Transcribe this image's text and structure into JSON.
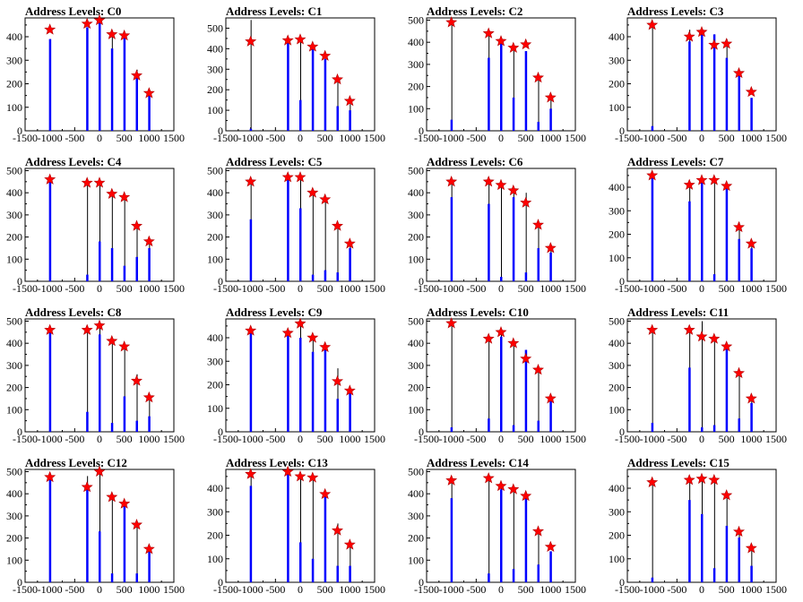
{
  "figure": {
    "background": "#ffffff"
  },
  "colors": {
    "bar": "#0000ff",
    "spike": "#000000",
    "marker": "#ff0000",
    "axis": "#000000"
  },
  "chart_data": [
    {
      "type": "bar",
      "title": "Address Levels: C0",
      "xlim": [
        -1500,
        1500
      ],
      "ylim": [
        0,
        480
      ],
      "xticks": [
        "-1500",
        "-1000",
        "-500",
        "0",
        "500",
        "1000",
        "1500"
      ],
      "yticks": [
        "0",
        "100",
        "200",
        "300",
        "400"
      ],
      "peaks": [
        {
          "x": -1000,
          "bar": 390,
          "spike": 390,
          "marker": 430
        },
        {
          "x": -250,
          "bar": 440,
          "spike": 440,
          "marker": 455
        },
        {
          "x": 0,
          "bar": 470,
          "spike": 480,
          "marker": 470
        },
        {
          "x": 250,
          "bar": 350,
          "spike": 420,
          "marker": 410
        },
        {
          "x": 500,
          "bar": 410,
          "spike": 410,
          "marker": 405
        },
        {
          "x": 750,
          "bar": 240,
          "spike": 260,
          "marker": 235
        },
        {
          "x": 1000,
          "bar": 150,
          "spike": 150,
          "marker": 160
        }
      ]
    },
    {
      "type": "bar",
      "title": "Address Levels: C1",
      "xlim": [
        -1500,
        1500
      ],
      "ylim": [
        0,
        550
      ],
      "xticks": [
        "-1500",
        "-1000",
        "-500",
        "0",
        "500",
        "1000",
        "1500"
      ],
      "yticks": [
        "0",
        "100",
        "200",
        "300",
        "400",
        "500"
      ],
      "peaks": [
        {
          "x": -1000,
          "bar": 10,
          "spike": 540,
          "marker": 435
        },
        {
          "x": -250,
          "bar": 440,
          "spike": 440,
          "marker": 440
        },
        {
          "x": 0,
          "bar": 150,
          "spike": 450,
          "marker": 445
        },
        {
          "x": 250,
          "bar": 400,
          "spike": 400,
          "marker": 410
        },
        {
          "x": 500,
          "bar": 350,
          "spike": 350,
          "marker": 365
        },
        {
          "x": 750,
          "bar": 120,
          "spike": 260,
          "marker": 250
        },
        {
          "x": 1000,
          "bar": 100,
          "spike": 130,
          "marker": 145
        }
      ]
    },
    {
      "type": "bar",
      "title": "Address Levels: C2",
      "xlim": [
        -1500,
        1500
      ],
      "ylim": [
        0,
        510
      ],
      "xticks": [
        "-1500",
        "-1000",
        "-500",
        "0",
        "500",
        "1000",
        "1500"
      ],
      "yticks": [
        "0",
        "100",
        "200",
        "300",
        "400",
        "500"
      ],
      "peaks": [
        {
          "x": -1000,
          "bar": 50,
          "spike": 500,
          "marker": 490
        },
        {
          "x": -250,
          "bar": 330,
          "spike": 450,
          "marker": 440
        },
        {
          "x": 0,
          "bar": 400,
          "spike": 400,
          "marker": 405
        },
        {
          "x": 250,
          "bar": 150,
          "spike": 390,
          "marker": 375
        },
        {
          "x": 500,
          "bar": 360,
          "spike": 360,
          "marker": 390
        },
        {
          "x": 750,
          "bar": 40,
          "spike": 250,
          "marker": 240
        },
        {
          "x": 1000,
          "bar": 100,
          "spike": 150,
          "marker": 150
        }
      ]
    },
    {
      "type": "bar",
      "title": "Address Levels: C3",
      "xlim": [
        -1500,
        1500
      ],
      "ylim": [
        0,
        480
      ],
      "xticks": [
        "-1500",
        "-1000",
        "-500",
        "0",
        "500",
        "1000",
        "1500"
      ],
      "yticks": [
        "0",
        "100",
        "200",
        "300",
        "400"
      ],
      "peaks": [
        {
          "x": -1000,
          "bar": 20,
          "spike": 450,
          "marker": 450
        },
        {
          "x": -250,
          "bar": 380,
          "spike": 430,
          "marker": 400
        },
        {
          "x": 0,
          "bar": 410,
          "spike": 420,
          "marker": 420
        },
        {
          "x": 250,
          "bar": 410,
          "spike": 410,
          "marker": 365
        },
        {
          "x": 500,
          "bar": 310,
          "spike": 390,
          "marker": 370
        },
        {
          "x": 750,
          "bar": 250,
          "spike": 250,
          "marker": 245
        },
        {
          "x": 1000,
          "bar": 140,
          "spike": 140,
          "marker": 165
        }
      ]
    },
    {
      "type": "bar",
      "title": "Address Levels: C4",
      "xlim": [
        -1500,
        1500
      ],
      "ylim": [
        0,
        510
      ],
      "xticks": [
        "-1500",
        "-1000",
        "-500",
        "0",
        "500",
        "1000",
        "1500"
      ],
      "yticks": [
        "0",
        "100",
        "200",
        "300",
        "400",
        "500"
      ],
      "peaks": [
        {
          "x": -1000,
          "bar": 460,
          "spike": 460,
          "marker": 460
        },
        {
          "x": -250,
          "bar": 30,
          "spike": 440,
          "marker": 445
        },
        {
          "x": 0,
          "bar": 180,
          "spike": 450,
          "marker": 445
        },
        {
          "x": 250,
          "bar": 150,
          "spike": 400,
          "marker": 395
        },
        {
          "x": 500,
          "bar": 70,
          "spike": 390,
          "marker": 380
        },
        {
          "x": 750,
          "bar": 110,
          "spike": 250,
          "marker": 250
        },
        {
          "x": 1000,
          "bar": 150,
          "spike": 180,
          "marker": 180
        }
      ]
    },
    {
      "type": "bar",
      "title": "Address Levels: C5",
      "xlim": [
        -1500,
        1500
      ],
      "ylim": [
        0,
        510
      ],
      "xticks": [
        "-1500",
        "-1000",
        "-500",
        "0",
        "500",
        "1000",
        "1500"
      ],
      "yticks": [
        "0",
        "100",
        "200",
        "300",
        "400",
        "500"
      ],
      "peaks": [
        {
          "x": -1000,
          "bar": 280,
          "spike": 450,
          "marker": 450
        },
        {
          "x": -250,
          "bar": 470,
          "spike": 470,
          "marker": 470
        },
        {
          "x": 0,
          "bar": 330,
          "spike": 470,
          "marker": 470
        },
        {
          "x": 250,
          "bar": 30,
          "spike": 400,
          "marker": 400
        },
        {
          "x": 500,
          "bar": 50,
          "spike": 380,
          "marker": 370
        },
        {
          "x": 750,
          "bar": 40,
          "spike": 250,
          "marker": 250
        },
        {
          "x": 1000,
          "bar": 150,
          "spike": 170,
          "marker": 170
        }
      ]
    },
    {
      "type": "bar",
      "title": "Address Levels: C6",
      "xlim": [
        -1500,
        1500
      ],
      "ylim": [
        0,
        510
      ],
      "xticks": [
        "-1500",
        "-1000",
        "-500",
        "0",
        "500",
        "1000",
        "1500"
      ],
      "yticks": [
        "0",
        "100",
        "200",
        "300",
        "400",
        "500"
      ],
      "peaks": [
        {
          "x": -1000,
          "bar": 380,
          "spike": 450,
          "marker": 450
        },
        {
          "x": -250,
          "bar": 350,
          "spike": 450,
          "marker": 450
        },
        {
          "x": 0,
          "bar": 20,
          "spike": 430,
          "marker": 435
        },
        {
          "x": 250,
          "bar": 380,
          "spike": 410,
          "marker": 410
        },
        {
          "x": 500,
          "bar": 40,
          "spike": 400,
          "marker": 355
        },
        {
          "x": 750,
          "bar": 150,
          "spike": 250,
          "marker": 255
        },
        {
          "x": 1000,
          "bar": 130,
          "spike": 150,
          "marker": 150
        }
      ]
    },
    {
      "type": "bar",
      "title": "Address Levels: C7",
      "xlim": [
        -1500,
        1500
      ],
      "ylim": [
        0,
        480
      ],
      "xticks": [
        "-1500",
        "-1000",
        "-500",
        "0",
        "500",
        "1000",
        "1500"
      ],
      "yticks": [
        "0",
        "100",
        "200",
        "300",
        "400"
      ],
      "peaks": [
        {
          "x": -1000,
          "bar": 450,
          "spike": 450,
          "marker": 450
        },
        {
          "x": -250,
          "bar": 340,
          "spike": 420,
          "marker": 410
        },
        {
          "x": 0,
          "bar": 420,
          "spike": 440,
          "marker": 430
        },
        {
          "x": 250,
          "bar": 30,
          "spike": 430,
          "marker": 430
        },
        {
          "x": 500,
          "bar": 400,
          "spike": 400,
          "marker": 405
        },
        {
          "x": 750,
          "bar": 180,
          "spike": 250,
          "marker": 230
        },
        {
          "x": 1000,
          "bar": 140,
          "spike": 150,
          "marker": 160
        }
      ]
    },
    {
      "type": "bar",
      "title": "Address Levels: C8",
      "xlim": [
        -1500,
        1500
      ],
      "ylim": [
        0,
        510
      ],
      "xticks": [
        "-1500",
        "-1000",
        "-500",
        "0",
        "500",
        "1000",
        "1500"
      ],
      "yticks": [
        "0",
        "100",
        "200",
        "300",
        "400",
        "500"
      ],
      "peaks": [
        {
          "x": -1000,
          "bar": 460,
          "spike": 460,
          "marker": 460
        },
        {
          "x": -250,
          "bar": 90,
          "spike": 460,
          "marker": 460
        },
        {
          "x": 0,
          "bar": 440,
          "spike": 480,
          "marker": 480
        },
        {
          "x": 250,
          "bar": 40,
          "spike": 410,
          "marker": 410
        },
        {
          "x": 500,
          "bar": 160,
          "spike": 390,
          "marker": 385
        },
        {
          "x": 750,
          "bar": 50,
          "spike": 260,
          "marker": 230
        },
        {
          "x": 1000,
          "bar": 70,
          "spike": 150,
          "marker": 155
        }
      ]
    },
    {
      "type": "bar",
      "title": "Address Levels: C9",
      "xlim": [
        -1500,
        1500
      ],
      "ylim": [
        0,
        480
      ],
      "xticks": [
        "-1500",
        "-1000",
        "-500",
        "0",
        "500",
        "1000",
        "1500"
      ],
      "yticks": [
        "0",
        "100",
        "200",
        "300",
        "400"
      ],
      "peaks": [
        {
          "x": -1000,
          "bar": 440,
          "spike": 440,
          "marker": 430
        },
        {
          "x": -250,
          "bar": 420,
          "spike": 420,
          "marker": 420
        },
        {
          "x": 0,
          "bar": 400,
          "spike": 460,
          "marker": 460
        },
        {
          "x": 250,
          "bar": 340,
          "spike": 400,
          "marker": 400
        },
        {
          "x": 500,
          "bar": 360,
          "spike": 360,
          "marker": 360
        },
        {
          "x": 750,
          "bar": 140,
          "spike": 270,
          "marker": 215
        },
        {
          "x": 1000,
          "bar": 170,
          "spike": 170,
          "marker": 175
        }
      ]
    },
    {
      "type": "bar",
      "title": "Address Levels: C10",
      "xlim": [
        -1500,
        1500
      ],
      "ylim": [
        0,
        510
      ],
      "xticks": [
        "-1500",
        "-1000",
        "-500",
        "0",
        "500",
        "1000",
        "1500"
      ],
      "yticks": [
        "0",
        "100",
        "200",
        "300",
        "400",
        "500"
      ],
      "peaks": [
        {
          "x": -1000,
          "bar": 20,
          "spike": 490,
          "marker": 490
        },
        {
          "x": -250,
          "bar": 60,
          "spike": 420,
          "marker": 420
        },
        {
          "x": 0,
          "bar": 430,
          "spike": 450,
          "marker": 450
        },
        {
          "x": 250,
          "bar": 30,
          "spike": 400,
          "marker": 400
        },
        {
          "x": 500,
          "bar": 370,
          "spike": 370,
          "marker": 330
        },
        {
          "x": 750,
          "bar": 50,
          "spike": 280,
          "marker": 280
        },
        {
          "x": 1000,
          "bar": 140,
          "spike": 150,
          "marker": 150
        }
      ]
    },
    {
      "type": "bar",
      "title": "Address Levels: C11",
      "xlim": [
        -1500,
        1500
      ],
      "ylim": [
        0,
        510
      ],
      "xticks": [
        "-1500",
        "-1000",
        "-500",
        "0",
        "500",
        "1000",
        "1500"
      ],
      "yticks": [
        "0",
        "100",
        "200",
        "300",
        "400",
        "500"
      ],
      "peaks": [
        {
          "x": -1000,
          "bar": 40,
          "spike": 460,
          "marker": 460
        },
        {
          "x": -250,
          "bar": 290,
          "spike": 460,
          "marker": 460
        },
        {
          "x": 0,
          "bar": 20,
          "spike": 500,
          "marker": 430
        },
        {
          "x": 250,
          "bar": 30,
          "spike": 420,
          "marker": 420
        },
        {
          "x": 500,
          "bar": 390,
          "spike": 390,
          "marker": 385
        },
        {
          "x": 750,
          "bar": 60,
          "spike": 270,
          "marker": 265
        },
        {
          "x": 1000,
          "bar": 130,
          "spike": 150,
          "marker": 150
        }
      ]
    },
    {
      "type": "bar",
      "title": "Address Levels: C12",
      "xlim": [
        -1500,
        1500
      ],
      "ylim": [
        0,
        510
      ],
      "xticks": [
        "-1500",
        "-1000",
        "-500",
        "0",
        "500",
        "1000",
        "1500"
      ],
      "yticks": [
        "0",
        "100",
        "200",
        "300",
        "400",
        "500"
      ],
      "peaks": [
        {
          "x": -1000,
          "bar": 470,
          "spike": 470,
          "marker": 475
        },
        {
          "x": -250,
          "bar": 420,
          "spike": 480,
          "marker": 430
        },
        {
          "x": 0,
          "bar": 230,
          "spike": 500,
          "marker": 500
        },
        {
          "x": 250,
          "bar": 40,
          "spike": 400,
          "marker": 385
        },
        {
          "x": 500,
          "bar": 350,
          "spike": 350,
          "marker": 355
        },
        {
          "x": 750,
          "bar": 40,
          "spike": 260,
          "marker": 260
        },
        {
          "x": 1000,
          "bar": 150,
          "spike": 150,
          "marker": 150
        }
      ]
    },
    {
      "type": "bar",
      "title": "Address Levels: C13",
      "xlim": [
        -1500,
        1500
      ],
      "ylim": [
        0,
        480
      ],
      "xticks": [
        "-1500",
        "-1000",
        "-500",
        "0",
        "500",
        "1000",
        "1500"
      ],
      "yticks": [
        "0",
        "100",
        "200",
        "300",
        "400"
      ],
      "peaks": [
        {
          "x": -1000,
          "bar": 410,
          "spike": 460,
          "marker": 460
        },
        {
          "x": -250,
          "bar": 470,
          "spike": 470,
          "marker": 470
        },
        {
          "x": 0,
          "bar": 170,
          "spike": 450,
          "marker": 450
        },
        {
          "x": 250,
          "bar": 100,
          "spike": 450,
          "marker": 445
        },
        {
          "x": 500,
          "bar": 380,
          "spike": 380,
          "marker": 375
        },
        {
          "x": 750,
          "bar": 70,
          "spike": 250,
          "marker": 220
        },
        {
          "x": 1000,
          "bar": 70,
          "spike": 150,
          "marker": 160
        }
      ]
    },
    {
      "type": "bar",
      "title": "Address Levels: C14",
      "xlim": [
        -1500,
        1500
      ],
      "ylim": [
        0,
        510
      ],
      "xticks": [
        "-1500",
        "-1000",
        "-500",
        "0",
        "500",
        "1000",
        "1500"
      ],
      "yticks": [
        "0",
        "100",
        "200",
        "300",
        "400",
        "500"
      ],
      "peaks": [
        {
          "x": -1000,
          "bar": 380,
          "spike": 460,
          "marker": 460
        },
        {
          "x": -250,
          "bar": 40,
          "spike": 470,
          "marker": 470
        },
        {
          "x": 0,
          "bar": 420,
          "spike": 440,
          "marker": 435
        },
        {
          "x": 250,
          "bar": 60,
          "spike": 420,
          "marker": 420
        },
        {
          "x": 500,
          "bar": 390,
          "spike": 390,
          "marker": 390
        },
        {
          "x": 750,
          "bar": 80,
          "spike": 240,
          "marker": 230
        },
        {
          "x": 1000,
          "bar": 140,
          "spike": 140,
          "marker": 160
        }
      ]
    },
    {
      "type": "bar",
      "title": "Address Levels: C15",
      "xlim": [
        -1500,
        1500
      ],
      "ylim": [
        0,
        480
      ],
      "xticks": [
        "-1500",
        "-1000",
        "-500",
        "0",
        "500",
        "1000",
        "1500"
      ],
      "yticks": [
        "0",
        "100",
        "200",
        "300",
        "400"
      ],
      "peaks": [
        {
          "x": -1000,
          "bar": 20,
          "spike": 430,
          "marker": 425
        },
        {
          "x": -250,
          "bar": 350,
          "spike": 440,
          "marker": 435
        },
        {
          "x": 0,
          "bar": 290,
          "spike": 450,
          "marker": 440
        },
        {
          "x": 250,
          "bar": 60,
          "spike": 440,
          "marker": 435
        },
        {
          "x": 500,
          "bar": 240,
          "spike": 370,
          "marker": 370
        },
        {
          "x": 750,
          "bar": 190,
          "spike": 220,
          "marker": 215
        },
        {
          "x": 1000,
          "bar": 70,
          "spike": 150,
          "marker": 145
        }
      ]
    }
  ]
}
